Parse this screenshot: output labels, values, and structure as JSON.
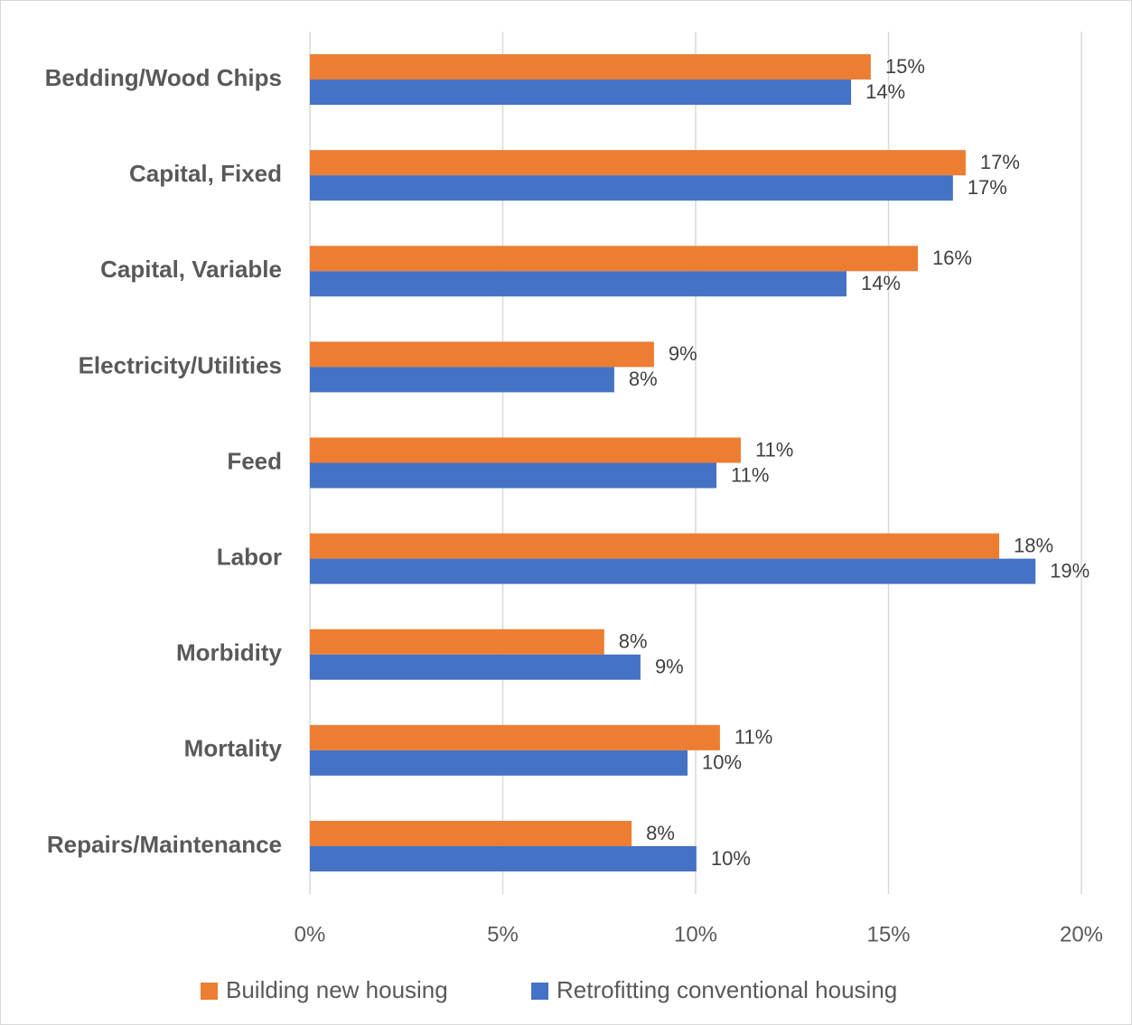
{
  "chart_data": {
    "type": "bar",
    "orientation": "horizontal",
    "categories": [
      "Bedding/Wood Chips",
      "Capital, Fixed",
      "Capital, Variable",
      "Electricity/Utilities",
      "Feed",
      "Labor",
      "Morbidity",
      "Mortality",
      "Repairs/Maintenance"
    ],
    "series": [
      {
        "name": "Building new housing",
        "color": "#ed7d31",
        "values": [
          14.54,
          17.0,
          15.76,
          8.92,
          11.17,
          17.87,
          7.63,
          10.63,
          8.34
        ],
        "value_labels": [
          "15%",
          "17%",
          "16%",
          "9%",
          "11%",
          "18%",
          "8%",
          "11%",
          "8%"
        ]
      },
      {
        "name": "Retrofitting conventional housing",
        "color": "#4472c4",
        "values": [
          14.03,
          16.67,
          13.91,
          7.89,
          10.54,
          18.81,
          8.57,
          9.79,
          10.02
        ],
        "value_labels": [
          "14%",
          "17%",
          "14%",
          "8%",
          "11%",
          "19%",
          "9%",
          "10%",
          "10%"
        ]
      }
    ],
    "xlim": [
      0,
      20
    ],
    "xticks": [
      {
        "value": 0,
        "label": "0%"
      },
      {
        "value": 5,
        "label": "5%"
      },
      {
        "value": 10,
        "label": "10%"
      },
      {
        "value": 15,
        "label": "15%"
      },
      {
        "value": 20,
        "label": "20%"
      }
    ],
    "grid": true,
    "legend": "bottom"
  }
}
